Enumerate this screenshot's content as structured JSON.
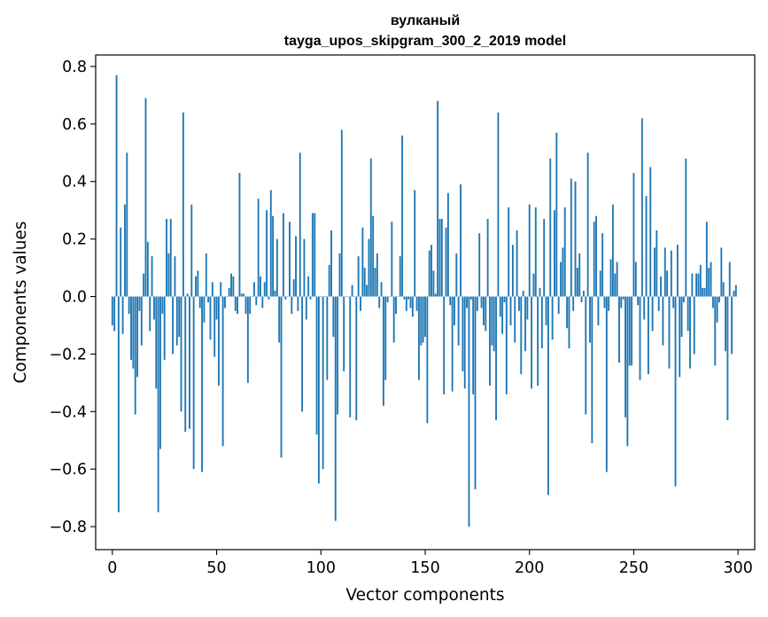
{
  "chart_data": {
    "type": "bar",
    "title": "вулканый",
    "subtitle": "tayga_upos_skipgram_300_2_2019 model",
    "xlabel": "Vector components",
    "ylabel": "Components values",
    "xlim": [
      -8,
      308
    ],
    "ylim": [
      -0.88,
      0.84
    ],
    "x_ticks": [
      0,
      50,
      100,
      150,
      200,
      250,
      300
    ],
    "x_tick_labels": [
      "0",
      "50",
      "100",
      "150",
      "200",
      "250",
      "300"
    ],
    "y_ticks": [
      0.8,
      0.6,
      0.4,
      0.2,
      0.0,
      -0.2,
      -0.4,
      -0.6,
      -0.8
    ],
    "y_tick_labels": [
      "0.8",
      "0.6",
      "0.4",
      "0.2",
      "0.0",
      "−0.2",
      "−0.4",
      "−0.6",
      "−0.8"
    ],
    "bar_color": "#1f77b4",
    "grid": false,
    "legend": "none",
    "values": [
      -0.1,
      -0.12,
      0.77,
      -0.75,
      0.24,
      -0.13,
      0.32,
      0.5,
      -0.06,
      -0.22,
      -0.25,
      -0.41,
      -0.28,
      -0.05,
      -0.17,
      0.08,
      0.69,
      0.19,
      -0.12,
      0.14,
      -0.08,
      -0.32,
      -0.75,
      -0.53,
      -0.06,
      -0.22,
      0.27,
      0.15,
      0.27,
      -0.2,
      0.14,
      -0.17,
      -0.14,
      -0.4,
      0.64,
      -0.47,
      0.01,
      -0.46,
      0.32,
      -0.6,
      0.07,
      0.09,
      -0.04,
      -0.61,
      -0.09,
      0.15,
      -0.02,
      -0.15,
      0.05,
      -0.21,
      -0.08,
      -0.31,
      0.05,
      -0.52,
      -0.04,
      0.0,
      0.03,
      0.08,
      0.07,
      -0.05,
      -0.06,
      0.43,
      0.01,
      0.01,
      -0.06,
      -0.3,
      -0.06,
      0.0,
      0.05,
      -0.03,
      0.34,
      0.07,
      -0.04,
      0.05,
      0.3,
      -0.01,
      0.37,
      0.28,
      0.02,
      0.2,
      -0.16,
      -0.56,
      0.29,
      -0.01,
      0.0,
      0.26,
      -0.06,
      0.06,
      0.21,
      -0.05,
      0.5,
      -0.4,
      0.2,
      -0.08,
      0.07,
      -0.01,
      0.29,
      0.29,
      -0.48,
      -0.65,
      0.0,
      -0.6,
      0.0,
      -0.29,
      0.11,
      0.23,
      -0.14,
      -0.78,
      -0.41,
      0.15,
      0.58,
      -0.26,
      0.0,
      0.0,
      -0.42,
      0.04,
      0.0,
      -0.43,
      0.14,
      -0.05,
      0.24,
      0.1,
      0.04,
      0.2,
      0.48,
      0.28,
      0.1,
      0.15,
      -0.04,
      0.05,
      -0.38,
      -0.29,
      -0.02,
      0.0,
      0.26,
      -0.16,
      -0.06,
      0.0,
      0.14,
      0.56,
      -0.01,
      -0.05,
      -0.01,
      -0.04,
      -0.07,
      0.37,
      -0.05,
      -0.29,
      -0.17,
      -0.16,
      -0.14,
      -0.44,
      0.16,
      0.18,
      0.09,
      0.01,
      0.68,
      0.27,
      0.27,
      -0.34,
      0.24,
      0.36,
      -0.03,
      -0.33,
      -0.1,
      0.15,
      -0.17,
      0.39,
      -0.26,
      -0.32,
      -0.04,
      -0.8,
      -0.01,
      -0.34,
      -0.67,
      -0.05,
      0.22,
      -0.04,
      -0.1,
      -0.12,
      0.27,
      -0.31,
      -0.17,
      -0.19,
      -0.43,
      0.64,
      -0.07,
      -0.13,
      -0.02,
      -0.34,
      0.31,
      -0.1,
      0.18,
      -0.16,
      0.23,
      -0.05,
      -0.27,
      0.02,
      -0.19,
      -0.08,
      0.32,
      -0.32,
      0.08,
      0.31,
      -0.31,
      0.03,
      -0.18,
      0.27,
      -0.1,
      -0.69,
      0.48,
      -0.15,
      0.3,
      0.57,
      -0.06,
      0.12,
      0.17,
      0.31,
      -0.11,
      -0.18,
      0.41,
      -0.05,
      0.4,
      0.1,
      0.15,
      -0.02,
      0.02,
      -0.41,
      0.5,
      -0.16,
      -0.51,
      0.26,
      0.28,
      -0.1,
      0.09,
      0.22,
      -0.04,
      -0.61,
      -0.05,
      0.13,
      0.32,
      0.08,
      0.12,
      -0.23,
      -0.04,
      -0.01,
      -0.42,
      -0.52,
      -0.24,
      -0.24,
      0.43,
      0.12,
      -0.03,
      -0.29,
      0.62,
      -0.08,
      0.35,
      -0.27,
      0.45,
      -0.12,
      0.17,
      0.23,
      -0.05,
      0.07,
      -0.17,
      0.17,
      0.09,
      -0.25,
      0.16,
      -0.04,
      -0.66,
      0.18,
      -0.28,
      -0.14,
      -0.02,
      0.48,
      -0.12,
      -0.25,
      0.08,
      -0.2,
      0.08,
      0.08,
      0.11,
      0.03,
      0.03,
      0.26,
      0.1,
      0.12,
      -0.04,
      -0.24,
      -0.09,
      -0.02,
      0.17,
      0.05,
      -0.19,
      -0.43,
      0.12,
      -0.2,
      0.02,
      0.04
    ]
  }
}
